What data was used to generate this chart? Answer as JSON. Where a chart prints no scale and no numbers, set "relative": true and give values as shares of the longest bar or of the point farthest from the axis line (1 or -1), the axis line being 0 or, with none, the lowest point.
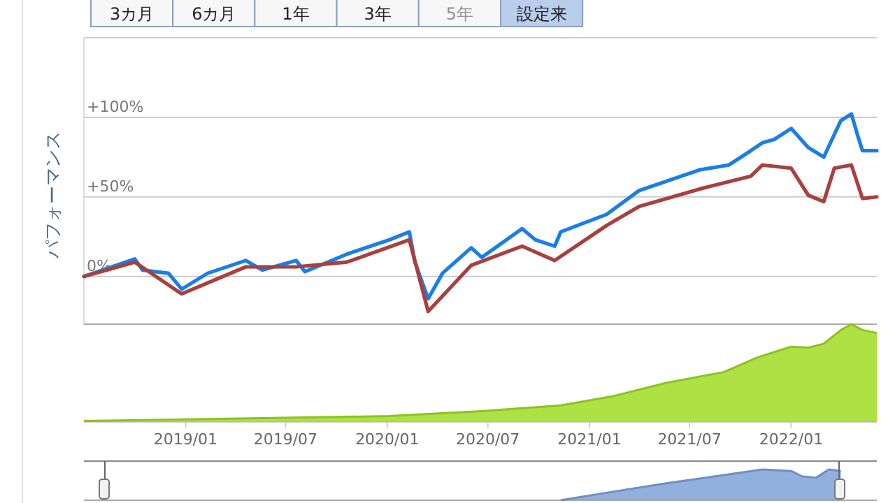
{
  "chart_data": [
    {
      "type": "line",
      "ylabel": "パフォーマンス",
      "annotations": [
        "3カ月",
        "6カ月",
        "1年",
        "3年",
        "5年",
        "設定来"
      ],
      "xlim": [
        "2018-07-01",
        "2022-06-05"
      ],
      "ylim": [
        -30,
        150
      ],
      "yticks": [
        {
          "value": 0,
          "label": "0%"
        },
        {
          "value": 50,
          "label": "+50%"
        },
        {
          "value": 100,
          "label": "+100%"
        }
      ],
      "grid": "y",
      "tick_labels": "y",
      "series": [
        {
          "color": "#1a7ee8",
          "x": [
            "2018-07-01",
            "2018-10-01",
            "2018-10-15",
            "2018-12-01",
            "2018-12-25",
            "2019-02-10",
            "2019-04-20",
            "2019-05-20",
            "2019-07-20",
            "2019-08-05",
            "2019-10-20",
            "2020-01-05",
            "2020-02-10",
            "2020-02-20",
            "2020-03-15",
            "2020-04-10",
            "2020-06-01",
            "2020-06-20",
            "2020-09-01",
            "2020-09-25",
            "2020-10-30",
            "2020-11-10",
            "2021-02-01",
            "2021-04-01",
            "2021-07-20",
            "2021-09-10",
            "2021-10-20",
            "2021-11-10",
            "2021-12-01",
            "2022-01-01",
            "2022-02-01",
            "2022-03-01",
            "2022-04-01",
            "2022-04-20",
            "2022-05-01",
            "2022-05-10",
            "2022-06-05"
          ],
          "values": [
            0,
            11,
            4,
            2,
            -8,
            2,
            10,
            4,
            10,
            3,
            14,
            23,
            28,
            9,
            -14,
            2,
            18,
            12,
            30,
            23,
            19,
            28,
            39,
            54,
            67,
            70,
            79,
            84,
            86,
            93,
            81,
            75,
            98,
            102,
            89,
            79,
            79
          ]
        },
        {
          "color": "#a84040",
          "x": [
            "2018-07-01",
            "2018-10-01",
            "2018-12-25",
            "2019-04-20",
            "2019-07-20",
            "2019-10-20",
            "2020-02-10",
            "2020-03-15",
            "2020-06-01",
            "2020-09-01",
            "2020-10-30",
            "2021-02-01",
            "2021-04-01",
            "2021-07-20",
            "2021-10-20",
            "2021-11-10",
            "2022-01-01",
            "2022-02-01",
            "2022-03-01",
            "2022-03-20",
            "2022-04-20",
            "2022-05-10",
            "2022-06-05"
          ],
          "values": [
            0,
            9,
            -11,
            6,
            6,
            9,
            23,
            -22,
            7,
            19,
            10,
            32,
            44,
            55,
            63,
            70,
            68,
            51,
            47,
            68,
            70,
            49,
            50
          ]
        }
      ]
    },
    {
      "type": "area",
      "relative": true,
      "color": "#8dc21f",
      "xlim": [
        "2018-07-01",
        "2022-06-05"
      ],
      "xticks": [
        {
          "value": "2019-01-01",
          "label": "2019/01"
        },
        {
          "value": "2019-07-01",
          "label": "2019/07"
        },
        {
          "value": "2020-01-01",
          "label": "2020/01"
        },
        {
          "value": "2020-07-01",
          "label": "2020/07"
        },
        {
          "value": "2021-01-01",
          "label": "2021/01"
        },
        {
          "value": "2021-07-01",
          "label": "2021/07"
        },
        {
          "value": "2022-01-01",
          "label": "2022/01"
        }
      ],
      "tick_labels": "x",
      "x": [
        "2018-07-01",
        "2020-01-05",
        "2020-06-20",
        "2020-11-10",
        "2021-02-10",
        "2021-05-20",
        "2021-09-01",
        "2021-11-01",
        "2022-01-01",
        "2022-02-01",
        "2022-03-01",
        "2022-04-01",
        "2022-04-20",
        "2022-05-10",
        "2022-06-05"
      ],
      "values": [
        0.01,
        0.06,
        0.11,
        0.17,
        0.26,
        0.4,
        0.51,
        0.66,
        0.77,
        0.76,
        0.8,
        0.94,
        1,
        0.94,
        0.91
      ]
    },
    {
      "type": "area",
      "relative": true,
      "color": "#6f8fbf",
      "xlim": [
        "2018-07-01",
        "2022-06-05"
      ],
      "tick_labels": false,
      "x": [
        "2020-11-10",
        "2021-02-10",
        "2021-05-20",
        "2021-09-01",
        "2021-11-10",
        "2022-01-01",
        "2022-01-20",
        "2022-02-15",
        "2022-03-10",
        "2022-04-01"
      ],
      "values": [
        0,
        0.27,
        0.55,
        0.82,
        1,
        0.95,
        0.78,
        0.73,
        1,
        0.95
      ]
    }
  ]
}
